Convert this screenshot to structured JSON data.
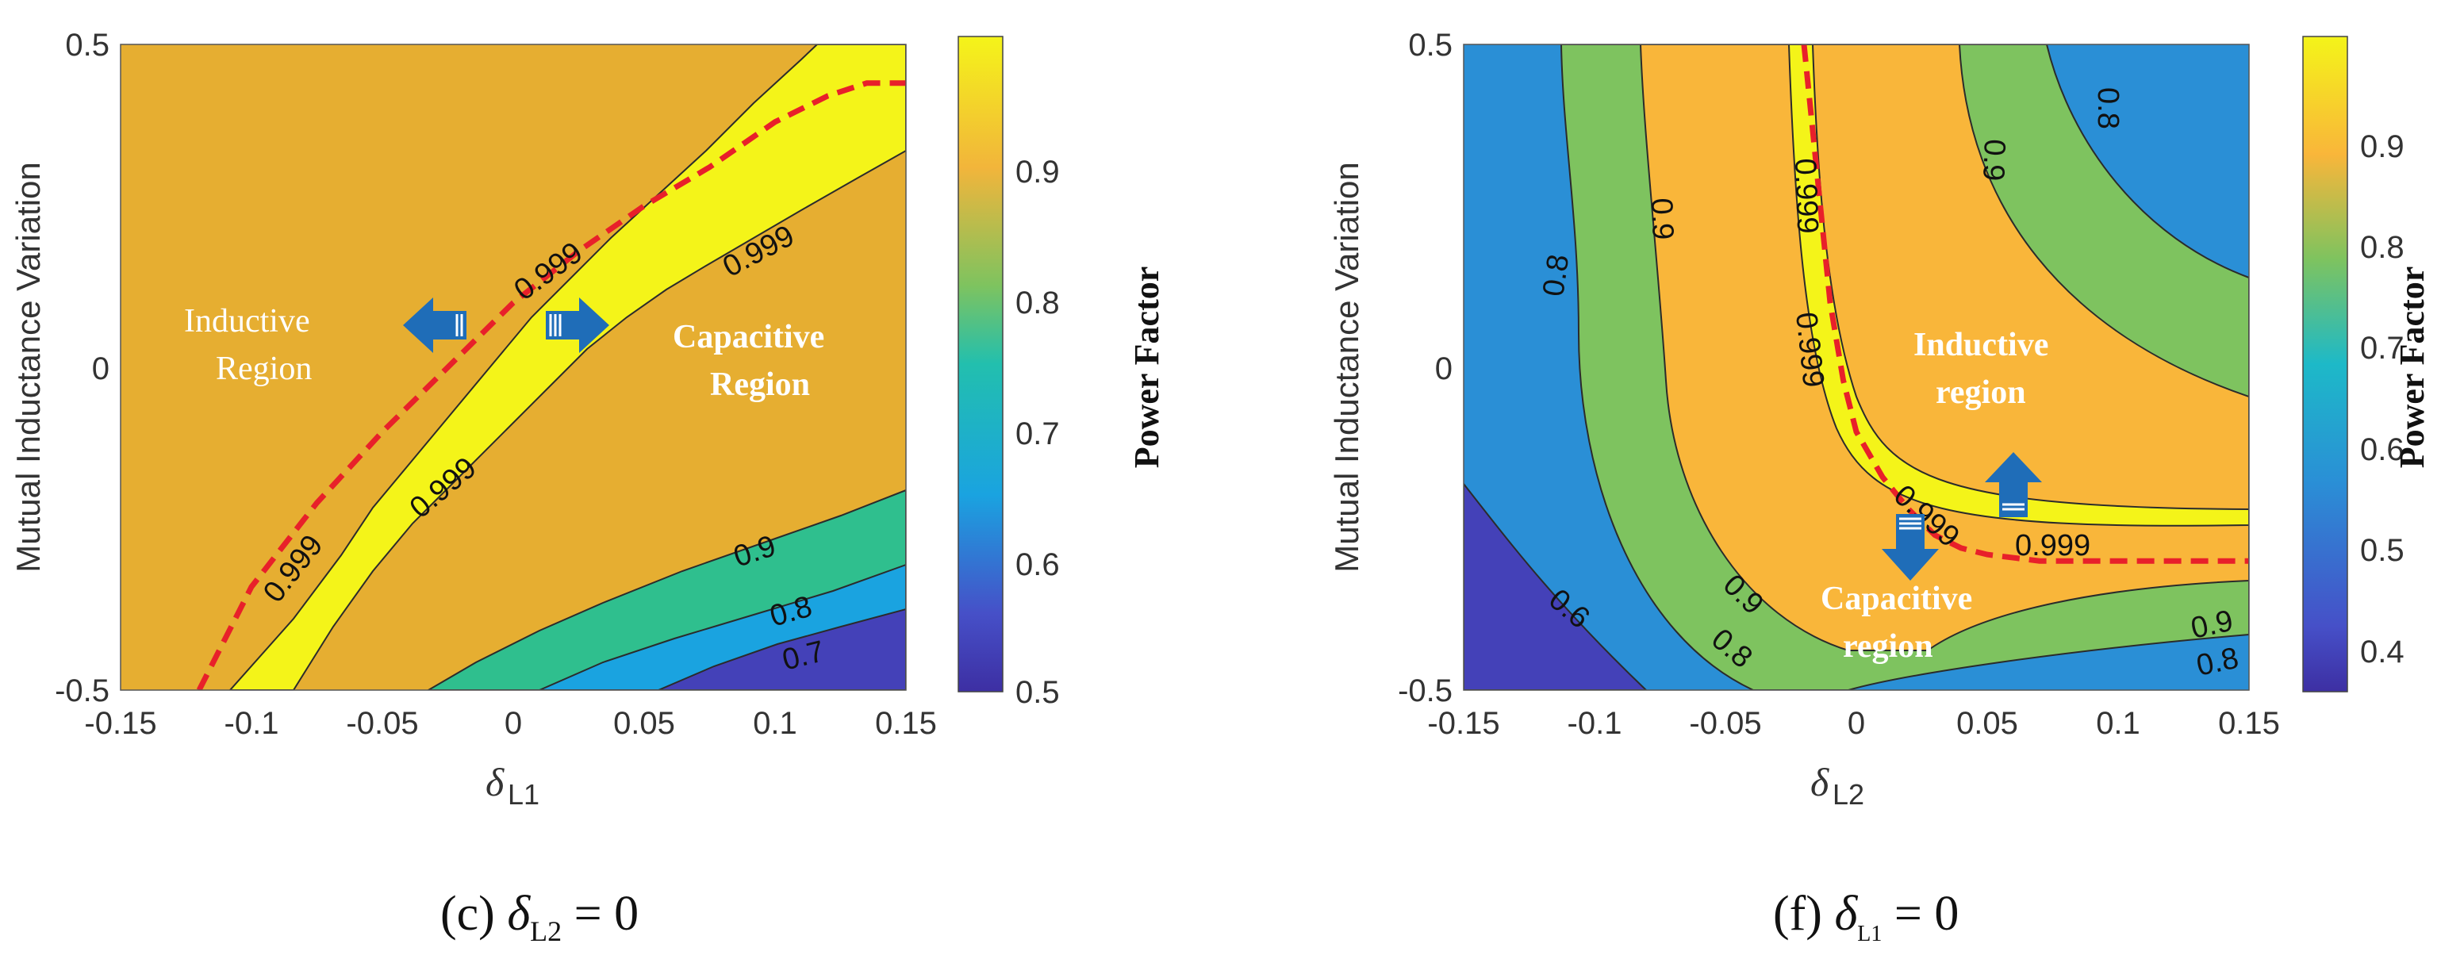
{
  "colors": {
    "pf_0_4": "#3d2fa3",
    "pf_0_5": "#4441b8",
    "pf_0_6": "#2a8fd6",
    "pf_0_7": "#1aa3e0",
    "pf_0_8": "#7ec35f",
    "pf_0_9": "#2fbf8e",
    "pf_orange_left": "#e6ae31",
    "pf_orange_right": "#f9b63a",
    "pf_yellow": "#f4f419",
    "guide_line": "#e8202a",
    "arrow_blue": "#1f6db8",
    "annotation_text": "#ffffff"
  },
  "chart_data": [
    {
      "panel_id": "c",
      "type": "contour",
      "caption": {
        "label": "(c)",
        "condition": "δ",
        "subscript": "L2",
        "rhs": "= 0"
      },
      "xlabel": "δL1",
      "ylabel": "Mutual Inductance Variation",
      "xlim": [
        -0.15,
        0.15
      ],
      "ylim": [
        -0.5,
        0.5
      ],
      "xticks": [
        "-0.15",
        "-0.1",
        "-0.05",
        "0",
        "0.05",
        "0.1",
        "0.15"
      ],
      "yticks": [
        "0.5",
        "0",
        "-0.5"
      ],
      "colorbar": {
        "label": "Power Factor",
        "range": [
          0.5,
          1.0
        ],
        "ticks": [
          "0.9",
          "0.8",
          "0.7",
          "0.6",
          "0.5"
        ]
      },
      "contour_labels": [
        "0.999",
        "0.999",
        "0.999",
        "0.999",
        "0.9",
        "0.8",
        "0.7"
      ],
      "annotations": {
        "left_region": [
          "Inductive",
          "Region"
        ],
        "right_region": [
          "Capacitive",
          "Region"
        ]
      },
      "unity_pf_curve": {
        "x": [
          -0.12,
          -0.1,
          -0.075,
          -0.05,
          -0.025,
          0.0,
          0.025,
          0.05,
          0.075,
          0.1,
          0.12,
          0.135,
          0.15
        ],
        "y": [
          -0.5,
          -0.34,
          -0.21,
          -0.1,
          0.0,
          0.1,
          0.18,
          0.25,
          0.31,
          0.38,
          0.42,
          0.44,
          0.44
        ]
      }
    },
    {
      "panel_id": "f",
      "type": "contour",
      "caption": {
        "label": "(f)",
        "condition": "δ",
        "subscript": "L1",
        "rhs": "= 0"
      },
      "xlabel": "δL2",
      "ylabel": "Mutual Inductance Variation",
      "xlim": [
        -0.15,
        0.15
      ],
      "ylim": [
        -0.5,
        0.5
      ],
      "xticks": [
        "-0.15",
        "-0.1",
        "-0.05",
        "0",
        "0.05",
        "0.1",
        "0.15"
      ],
      "yticks": [
        "0.5",
        "0",
        "-0.5"
      ],
      "colorbar": {
        "label": "Power Factor",
        "range": [
          0.36,
          1.0
        ],
        "ticks": [
          "0.9",
          "0.8",
          "0.7",
          "0.6",
          "0.5",
          "0.4"
        ]
      },
      "contour_labels": [
        "0.8",
        "0.9",
        "0.999",
        "0.9",
        "0.8",
        "0.999",
        "0.999",
        "0.999",
        "0.6",
        "0.9",
        "0.8",
        "0.9",
        "0.8"
      ],
      "annotations": {
        "top_region": [
          "Inductive",
          "region"
        ],
        "bottom_region": [
          "Capacitive",
          "region"
        ]
      },
      "unity_pf_curve": {
        "x": [
          -0.02,
          -0.015,
          -0.01,
          -0.005,
          0.0,
          0.01,
          0.02,
          0.03,
          0.04,
          0.05,
          0.07,
          0.1,
          0.15
        ],
        "y": [
          0.5,
          0.3,
          0.1,
          -0.02,
          -0.1,
          -0.17,
          -0.22,
          -0.26,
          -0.28,
          -0.29,
          -0.3,
          -0.3,
          -0.3
        ]
      }
    }
  ]
}
